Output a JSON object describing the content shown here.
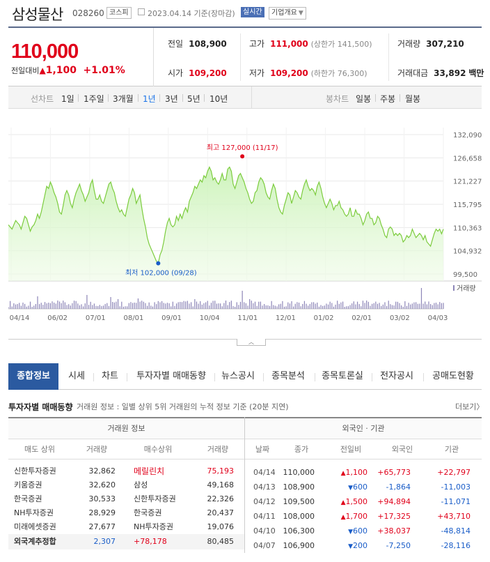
{
  "header": {
    "name": "삼성물산",
    "code": "028260",
    "market": "코스피",
    "date_text": "2023.04.14 기준(장마감)",
    "realtime": "실시간",
    "corp_info": "기업개요"
  },
  "summary": {
    "price": "110,000",
    "diff_label": "전일대비",
    "diff_value": "1,100",
    "diff_rate": "+1.01%",
    "prev_close_label": "전일",
    "prev_close": "108,900",
    "high_label": "고가",
    "high": "111,000",
    "upper_limit": "(상한가 141,500)",
    "volume_label": "거래량",
    "volume": "307,210",
    "open_label": "시가",
    "open": "109,200",
    "low_label": "저가",
    "low": "109,200",
    "lower_limit": "(하한가 76,300)",
    "amount_label": "거래대금",
    "amount": "33,892",
    "amount_unit": "백만"
  },
  "period": {
    "line_label": "선차트",
    "line_options": [
      "1일",
      "1주일",
      "3개월",
      "1년",
      "3년",
      "5년",
      "10년"
    ],
    "active": "1년",
    "candle_label": "봉차트",
    "candle_options": [
      "일봉",
      "주봉",
      "월봉"
    ]
  },
  "chart_data": {
    "type": "area",
    "y_ticks": [
      "132,090",
      "126,658",
      "121,227",
      "115,795",
      "110,363",
      "104,932",
      "99,500"
    ],
    "ylim": [
      99500,
      132090
    ],
    "x_ticks": [
      "04/14",
      "06/02",
      "07/01",
      "08/01",
      "09/01",
      "10/04",
      "11/01",
      "12/01",
      "01/02",
      "02/01",
      "03/02",
      "04/03"
    ],
    "values": [
      111000,
      110500,
      110000,
      111000,
      112000,
      111500,
      111000,
      110000,
      111500,
      113000,
      112500,
      111000,
      109500,
      110500,
      111000,
      112000,
      113500,
      112500,
      114000,
      116000,
      118000,
      120000,
      119500,
      121000,
      120000,
      118500,
      117500,
      116000,
      114000,
      113500,
      115500,
      118000,
      119000,
      118000,
      116000,
      115000,
      117000,
      118500,
      119500,
      120500,
      119000,
      118000,
      116500,
      117500,
      118500,
      120500,
      121500,
      119000,
      117000,
      117000,
      118000,
      116500,
      116000,
      117500,
      119000,
      120500,
      121000,
      119500,
      118500,
      116500,
      115000,
      114000,
      114500,
      113500,
      113000,
      115000,
      117000,
      118000,
      119500,
      118500,
      116000,
      117000,
      118000,
      115000,
      112500,
      110500,
      108000,
      106500,
      105500,
      104500,
      103500,
      102500,
      102000,
      104000,
      105000,
      107000,
      109500,
      111500,
      112500,
      111000,
      110500,
      111000,
      113000,
      112000,
      113500,
      112500,
      114000,
      115000,
      114000,
      116500,
      117500,
      118500,
      120000,
      119500,
      120500,
      121500,
      121000,
      122500,
      122000,
      123500,
      124500,
      123500,
      121500,
      122000,
      121000,
      120500,
      121500,
      123000,
      121500,
      121500,
      124000,
      124500,
      123500,
      120500,
      119500,
      121000,
      122500,
      123000,
      122000,
      121000,
      119500,
      118500,
      117000,
      116000,
      116500,
      118500,
      119000,
      121000,
      122000,
      121500,
      120500,
      118500,
      117500,
      117000,
      119000,
      120500,
      119500,
      117000,
      115000,
      114000,
      113500,
      115500,
      117000,
      118500,
      118000,
      116000,
      117500,
      119000,
      118500,
      117500,
      117000,
      119000,
      120500,
      121500,
      120000,
      119000,
      119500,
      119000,
      118000,
      120000,
      121000,
      119500,
      117500,
      116000,
      115000,
      116000,
      117000,
      116000,
      114500,
      115500,
      115500,
      116500,
      115000,
      114500,
      113500,
      113000,
      113500,
      115000,
      113000,
      113000,
      114500,
      113500,
      113500,
      112500,
      111000,
      112000,
      113500,
      114000,
      112500,
      112500,
      111000,
      111500,
      113000,
      112500,
      111000,
      110000,
      108500,
      108000,
      110000,
      110500,
      110000,
      108500,
      109000,
      108500,
      109000,
      108500,
      107000,
      107500,
      108500,
      108000,
      108500,
      110000,
      109000,
      108000,
      108500,
      109000,
      108500,
      107500,
      108500,
      107000,
      106500,
      106000,
      107500,
      109000,
      110000,
      109500,
      110000,
      108900,
      110000
    ],
    "annotations": [
      {
        "label": "최고 127,000 (11/17)",
        "value": 127000,
        "index": 128
      },
      {
        "label": "최저 102,000 (09/28)",
        "value": 102000,
        "index": 82
      }
    ],
    "volume_label": "거래량",
    "grid": true
  },
  "tabs": [
    "종합정보",
    "시세",
    "차트",
    "투자자별 매매동향",
    "뉴스공시",
    "종목분석",
    "종목토론실",
    "전자공시",
    "공매도현황"
  ],
  "active_tab": "종합정보",
  "investor": {
    "title": "투자자별 매매동향",
    "subtitle": "거래원 정보 : 일별 상위 5위 거래원의 누적 정보 기준 (20분 지연)",
    "more": "더보기",
    "broker_group": "거래원 정보",
    "foreign_group": "외국인 · 기관",
    "broker_headers": [
      "매도 상위",
      "거래량",
      "매수상위",
      "거래량"
    ],
    "broker_rows": [
      [
        "신한투자증권",
        "32,862",
        "메릴린치",
        "75,193"
      ],
      [
        "키움증권",
        "32,620",
        "삼성",
        "49,168"
      ],
      [
        "한국증권",
        "30,533",
        "신한투자증권",
        "22,326"
      ],
      [
        "NH투자증권",
        "28,929",
        "한국증권",
        "20,437"
      ],
      [
        "미래에셋증권",
        "27,677",
        "NH투자증권",
        "19,076"
      ]
    ],
    "foreign_total": [
      "외국계추정합",
      "2,307",
      "+78,178",
      "80,485"
    ],
    "foreign_headers": [
      "날짜",
      "종가",
      "전일비",
      "외국인",
      "기관"
    ],
    "foreign_rows": [
      [
        "04/14",
        "110,000",
        "1,100",
        "+65,773",
        "+22,797"
      ],
      [
        "04/13",
        "108,900",
        "600",
        "-1,864",
        "-11,003"
      ],
      [
        "04/12",
        "109,500",
        "1,500",
        "+94,894",
        "-11,071"
      ],
      [
        "04/11",
        "108,000",
        "1,700",
        "+17,325",
        "+43,710"
      ],
      [
        "04/10",
        "106,300",
        "600",
        "+38,037",
        "-48,814"
      ],
      [
        "04/07",
        "106,900",
        "200",
        "-7,250",
        "-28,116"
      ]
    ],
    "foreign_dirs": [
      "up",
      "down",
      "up",
      "up",
      "down",
      "down"
    ],
    "colors": {
      "up": "#e0001a",
      "down": "#1a5dc8",
      "tab_active": "#2b5aa0",
      "line": "#7ccc3e"
    }
  }
}
